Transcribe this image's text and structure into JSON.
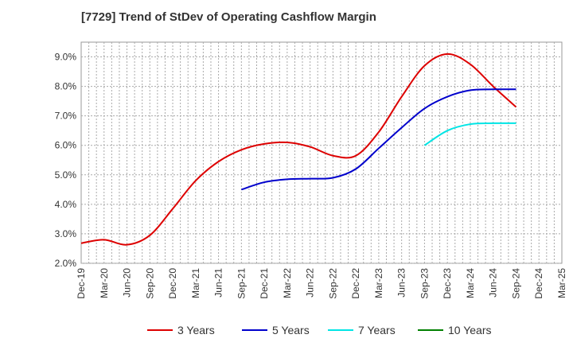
{
  "chart_data": {
    "type": "line",
    "title": "[7729]  Trend of StDev of Operating Cashflow Margin",
    "xlabel": "",
    "ylabel": "",
    "x": [
      "Dec-19",
      "Mar-20",
      "Jun-20",
      "Sep-20",
      "Dec-20",
      "Mar-21",
      "Jun-21",
      "Sep-21",
      "Dec-21",
      "Mar-22",
      "Jun-22",
      "Sep-22",
      "Dec-22",
      "Mar-23",
      "Jun-23",
      "Sep-23",
      "Dec-23",
      "Mar-24",
      "Jun-24",
      "Sep-24",
      "Dec-24",
      "Mar-25"
    ],
    "ylim": [
      2.0,
      9.5
    ],
    "yticks": [
      2.0,
      3.0,
      4.0,
      5.0,
      6.0,
      7.0,
      8.0,
      9.0
    ],
    "ytick_labels": [
      "2.0%",
      "3.0%",
      "4.0%",
      "5.0%",
      "6.0%",
      "7.0%",
      "8.0%",
      "9.0%"
    ],
    "grid": true,
    "legend_position": "bottom",
    "series": [
      {
        "name": "3 Years",
        "color": "#dd0000",
        "values": [
          2.68,
          2.8,
          2.63,
          2.95,
          3.85,
          4.8,
          5.45,
          5.85,
          6.05,
          6.1,
          5.95,
          5.65,
          5.65,
          6.45,
          7.65,
          8.7,
          9.1,
          8.75,
          8.0,
          7.3,
          null,
          null
        ]
      },
      {
        "name": "5 Years",
        "color": "#0000cc",
        "values": [
          null,
          null,
          null,
          null,
          null,
          null,
          null,
          4.5,
          4.75,
          4.85,
          4.87,
          4.9,
          5.2,
          5.9,
          6.6,
          7.25,
          7.65,
          7.87,
          7.9,
          7.9,
          null,
          null
        ]
      },
      {
        "name": "7 Years",
        "color": "#00e5e5",
        "values": [
          null,
          null,
          null,
          null,
          null,
          null,
          null,
          null,
          null,
          null,
          null,
          null,
          null,
          null,
          null,
          6.0,
          6.5,
          6.72,
          6.75,
          6.75,
          null,
          null
        ]
      },
      {
        "name": "10 Years",
        "color": "#008000",
        "values": [
          null,
          null,
          null,
          null,
          null,
          null,
          null,
          null,
          null,
          null,
          null,
          null,
          null,
          null,
          null,
          null,
          null,
          null,
          null,
          null,
          null,
          null
        ]
      }
    ]
  }
}
